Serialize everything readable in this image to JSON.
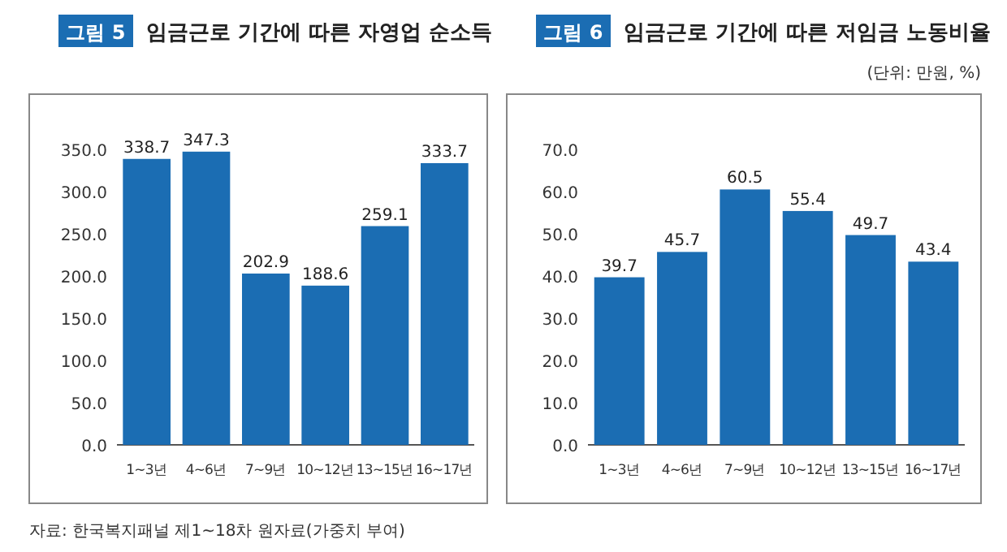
{
  "chart_data": [
    {
      "type": "bar",
      "title": "그림 5  임금근로 기간에 따른 자영업 순소득",
      "categories": [
        "1~3년",
        "4~6년",
        "7~9년",
        "10~12년",
        "13~15년",
        "16~17년"
      ],
      "values": [
        338.7,
        347.3,
        202.9,
        188.6,
        259.1,
        333.7
      ],
      "color": "#1b6db3",
      "ylim": [
        0,
        350
      ],
      "yticks": [
        {
          "value": 0,
          "label": "0.0"
        },
        {
          "value": 50,
          "label": "50.0"
        },
        {
          "value": 100,
          "label": "100.0"
        },
        {
          "value": 150,
          "label": "150.0"
        },
        {
          "value": 200,
          "label": "200.0"
        },
        {
          "value": 250,
          "label": "250.0"
        },
        {
          "value": 300,
          "label": "300.0"
        },
        {
          "value": 350,
          "label": "350.0"
        }
      ],
      "data_labels": true,
      "annotations": [
        "자료: 한국복지패널 제1~18차 원자료(가중치 부여)"
      ]
    },
    {
      "type": "bar",
      "title": "그림 6  임금근로 기간에 따른 저임금 노동비율",
      "subtitle": "(단위: 만원, %)",
      "categories": [
        "1~3년",
        "4~6년",
        "7~9년",
        "10~12년",
        "13~15년",
        "16~17년"
      ],
      "values": [
        39.7,
        45.7,
        60.5,
        55.4,
        49.7,
        43.4
      ],
      "color": "#1b6db3",
      "ylim": [
        0,
        70
      ],
      "yticks": [
        {
          "value": 0,
          "label": "0.0"
        },
        {
          "value": 10,
          "label": "10.0"
        },
        {
          "value": 20,
          "label": "20.0"
        },
        {
          "value": 30,
          "label": "30.0"
        },
        {
          "value": 40,
          "label": "40.0"
        },
        {
          "value": 50,
          "label": "50.0"
        },
        {
          "value": 60,
          "label": "60.0"
        },
        {
          "value": 70,
          "label": "70.0"
        }
      ],
      "data_labels": true
    }
  ]
}
